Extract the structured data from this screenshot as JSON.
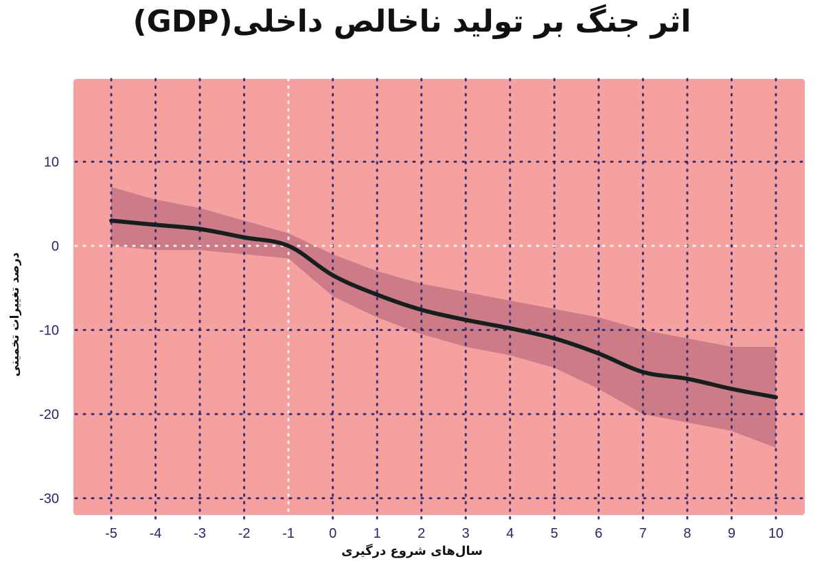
{
  "title": "اثر جنگ بر تولید ناخالص داخلی(GDP)",
  "colors": {
    "background": "#f4a1a0",
    "band": "#c0707f",
    "line": "#14201e",
    "grid": "#2a2470",
    "zero_line": "#ffffff",
    "tick_text": "#2a2470"
  },
  "chart_data": {
    "type": "line",
    "title": "اثر جنگ بر تولید ناخالص داخلی(GDP)",
    "xlabel": "سال‌های شروع درگیری",
    "ylabel": "درصد تغییرات تخمینی",
    "x": [
      -5,
      -4,
      -3,
      -2,
      -1,
      0,
      1,
      2,
      3,
      4,
      5,
      6,
      7,
      8,
      9,
      10
    ],
    "series": [
      {
        "name": "estimate",
        "values": [
          3.0,
          2.5,
          2.0,
          1.0,
          0.0,
          -3.5,
          -5.8,
          -7.6,
          -8.8,
          -9.8,
          -11.0,
          -12.8,
          -15.0,
          -15.8,
          -17.0,
          -18.0
        ]
      },
      {
        "name": "confidence_upper",
        "values": [
          7.0,
          5.5,
          4.5,
          3.0,
          1.5,
          -1.0,
          -3.0,
          -4.5,
          -5.5,
          -6.5,
          -7.5,
          -8.5,
          -10.0,
          -11.0,
          -12.0,
          -12.0
        ]
      },
      {
        "name": "confidence_lower",
        "values": [
          0.0,
          -0.5,
          -0.5,
          -1.0,
          -1.5,
          -6.0,
          -8.5,
          -10.5,
          -12.0,
          -13.0,
          -14.5,
          -17.0,
          -20.0,
          -21.0,
          -22.0,
          -24.0
        ]
      }
    ],
    "x_ticks": [
      "-5",
      "-4",
      "-3",
      "-2",
      "-1",
      "0",
      "1",
      "2",
      "3",
      "4",
      "5",
      "6",
      "7",
      "8",
      "9",
      "10"
    ],
    "y_ticks": [
      "10",
      "0",
      "-10",
      "-20",
      "-30"
    ],
    "xlim": [
      -5.85,
      11.6
    ],
    "ylim": [
      -31.5,
      19.7
    ],
    "grid": true,
    "legend": null
  }
}
